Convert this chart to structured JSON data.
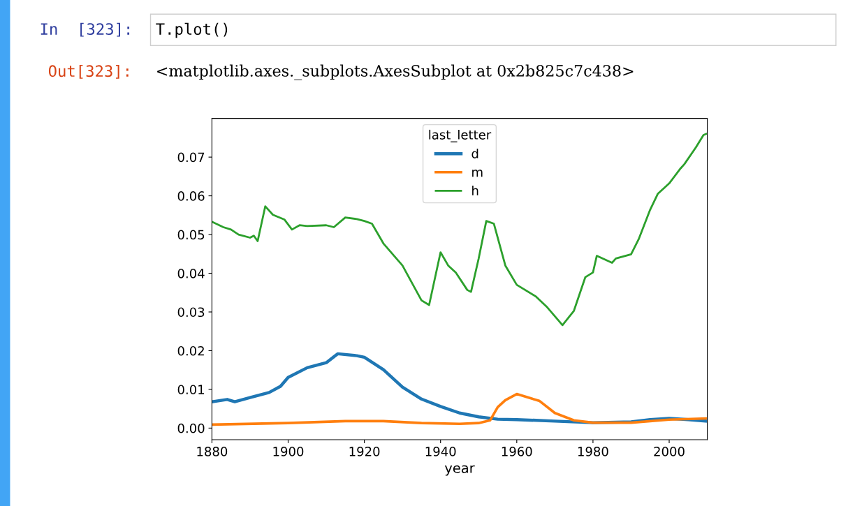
{
  "chart_data": {
    "type": "line",
    "xlabel": "year",
    "legend_title": "last_letter",
    "legend": "top center",
    "grid": false,
    "xlim": [
      1880,
      2010
    ],
    "xticks": [
      1880,
      1900,
      1920,
      1940,
      1960,
      1980,
      2000
    ],
    "ylim": [
      -0.003,
      0.08
    ],
    "yticks": [
      {
        "value": 0,
        "label": "0.00"
      },
      {
        "value": 0.01,
        "label": "0.01"
      },
      {
        "value": 0.02,
        "label": "0.02"
      },
      {
        "value": 0.03,
        "label": "0.03"
      },
      {
        "value": 0.04,
        "label": "0.04"
      },
      {
        "value": 0.05,
        "label": "0.05"
      },
      {
        "value": 0.06,
        "label": "0.06"
      },
      {
        "value": 0.07,
        "label": "0.07"
      }
    ],
    "annotations": [
      "In  [323]:",
      "T.plot()",
      "Out[323]:",
      "<matplotlib.axes._subplots.AxesSubplot at 0x2b825c7c438>"
    ],
    "series": [
      {
        "name": "d",
        "color": "#1f77b4",
        "x": [
          1880,
          1884,
          1886,
          1890,
          1895,
          1898,
          1900,
          1905,
          1910,
          1913,
          1918,
          1920,
          1925,
          1930,
          1935,
          1940,
          1945,
          1950,
          1955,
          1960,
          1970,
          1980,
          1990,
          1995,
          2000,
          2005,
          2010
        ],
        "values": [
          0.0068,
          0.0074,
          0.0068,
          0.0079,
          0.0092,
          0.0108,
          0.0131,
          0.0156,
          0.0169,
          0.0192,
          0.0187,
          0.0183,
          0.0151,
          0.0106,
          0.0075,
          0.0056,
          0.0039,
          0.0029,
          0.0023,
          0.0022,
          0.0018,
          0.0014,
          0.0016,
          0.0022,
          0.0025,
          0.0022,
          0.0018
        ]
      },
      {
        "name": "m",
        "color": "#ff7f0e",
        "x": [
          1880,
          1900,
          1915,
          1925,
          1935,
          1945,
          1950,
          1953,
          1955,
          1957,
          1960,
          1963,
          1966,
          1970,
          1975,
          1980,
          1990,
          2000,
          2010
        ],
        "values": [
          0.0009,
          0.0013,
          0.0018,
          0.0018,
          0.0013,
          0.0011,
          0.0013,
          0.002,
          0.0054,
          0.0072,
          0.0088,
          0.0079,
          0.007,
          0.0039,
          0.002,
          0.0014,
          0.0014,
          0.0022,
          0.0025
        ]
      },
      {
        "name": "h",
        "color": "#2ca02c",
        "x": [
          1880,
          1883,
          1885,
          1887,
          1890,
          1891,
          1892,
          1894,
          1896,
          1899,
          1901,
          1903,
          1905,
          1910,
          1912,
          1915,
          1918,
          1920,
          1922,
          1925,
          1930,
          1935,
          1937,
          1940,
          1942,
          1944,
          1947,
          1948,
          1950,
          1952,
          1954,
          1957,
          1960,
          1965,
          1968,
          1972,
          1975,
          1978,
          1980,
          1981,
          1985,
          1986,
          1990,
          1992,
          1995,
          1997,
          2000,
          2003,
          2004,
          2007,
          2009,
          2010
        ],
        "values": [
          0.0533,
          0.0519,
          0.0513,
          0.05,
          0.0492,
          0.0497,
          0.0483,
          0.0573,
          0.0551,
          0.0539,
          0.0513,
          0.0524,
          0.0522,
          0.0524,
          0.0519,
          0.0544,
          0.054,
          0.0535,
          0.0528,
          0.0477,
          0.042,
          0.033,
          0.0318,
          0.0454,
          0.042,
          0.0402,
          0.0357,
          0.0352,
          0.0438,
          0.0535,
          0.0528,
          0.042,
          0.037,
          0.034,
          0.0312,
          0.0266,
          0.0303,
          0.039,
          0.0402,
          0.0445,
          0.0427,
          0.0438,
          0.0449,
          0.0488,
          0.0564,
          0.0605,
          0.0632,
          0.0671,
          0.0682,
          0.0725,
          0.0757,
          0.0761
        ]
      }
    ]
  }
}
